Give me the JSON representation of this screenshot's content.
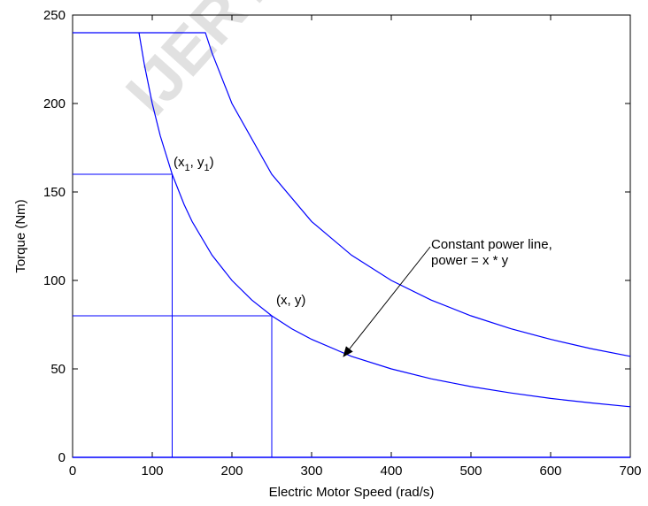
{
  "chart_data": {
    "type": "line",
    "xlabel": "Electric Motor Speed (rad/s)",
    "ylabel": "Torque (Nm)",
    "xlim": [
      0,
      700
    ],
    "ylim": [
      0,
      250
    ],
    "xticks": [
      0,
      100,
      200,
      300,
      400,
      500,
      600,
      700
    ],
    "yticks": [
      0,
      50,
      100,
      150,
      200,
      250
    ],
    "grid": false,
    "colors": {
      "line": "#0000ff",
      "axes": "#000000",
      "background": "#ffffff"
    },
    "series": [
      {
        "kind": "upper-limit-curve",
        "x": [
          0,
          166.7,
          175,
          200,
          250,
          300,
          350,
          400,
          450,
          500,
          550,
          600,
          650,
          700
        ],
        "y": [
          240,
          240,
          228.6,
          200,
          160,
          133.3,
          114.3,
          100,
          88.9,
          80,
          72.7,
          66.7,
          61.5,
          57.1
        ]
      },
      {
        "kind": "constant-power-curve",
        "x": [
          83.3,
          90,
          100,
          110,
          125,
          140,
          150,
          175,
          200,
          225,
          250,
          275,
          300,
          350,
          400,
          450,
          500,
          550,
          600,
          650,
          700
        ],
        "y": [
          240,
          222.2,
          200,
          181.8,
          160,
          142.9,
          133.3,
          114.3,
          100,
          88.9,
          80,
          72.7,
          66.7,
          57.1,
          50,
          44.4,
          40,
          36.4,
          33.3,
          30.8,
          28.6
        ]
      }
    ],
    "reference_lines": [
      {
        "x": 125,
        "y": 160
      },
      {
        "x": 250,
        "y": 80
      }
    ],
    "baseline_y": 0,
    "annotations": {
      "point1": {
        "main": "(x",
        "sub1": "1",
        "mid": ", y",
        "sub2": "1",
        "close": ")",
        "x": 125,
        "y": 160
      },
      "point2": {
        "text": "(x, y)",
        "x": 250,
        "y": 80
      },
      "power_line": {
        "lines": [
          "Constant power line,",
          "power = x * y"
        ],
        "arrow_target": {
          "x": 340,
          "y": 57
        }
      }
    },
    "watermark": "IJERT"
  }
}
